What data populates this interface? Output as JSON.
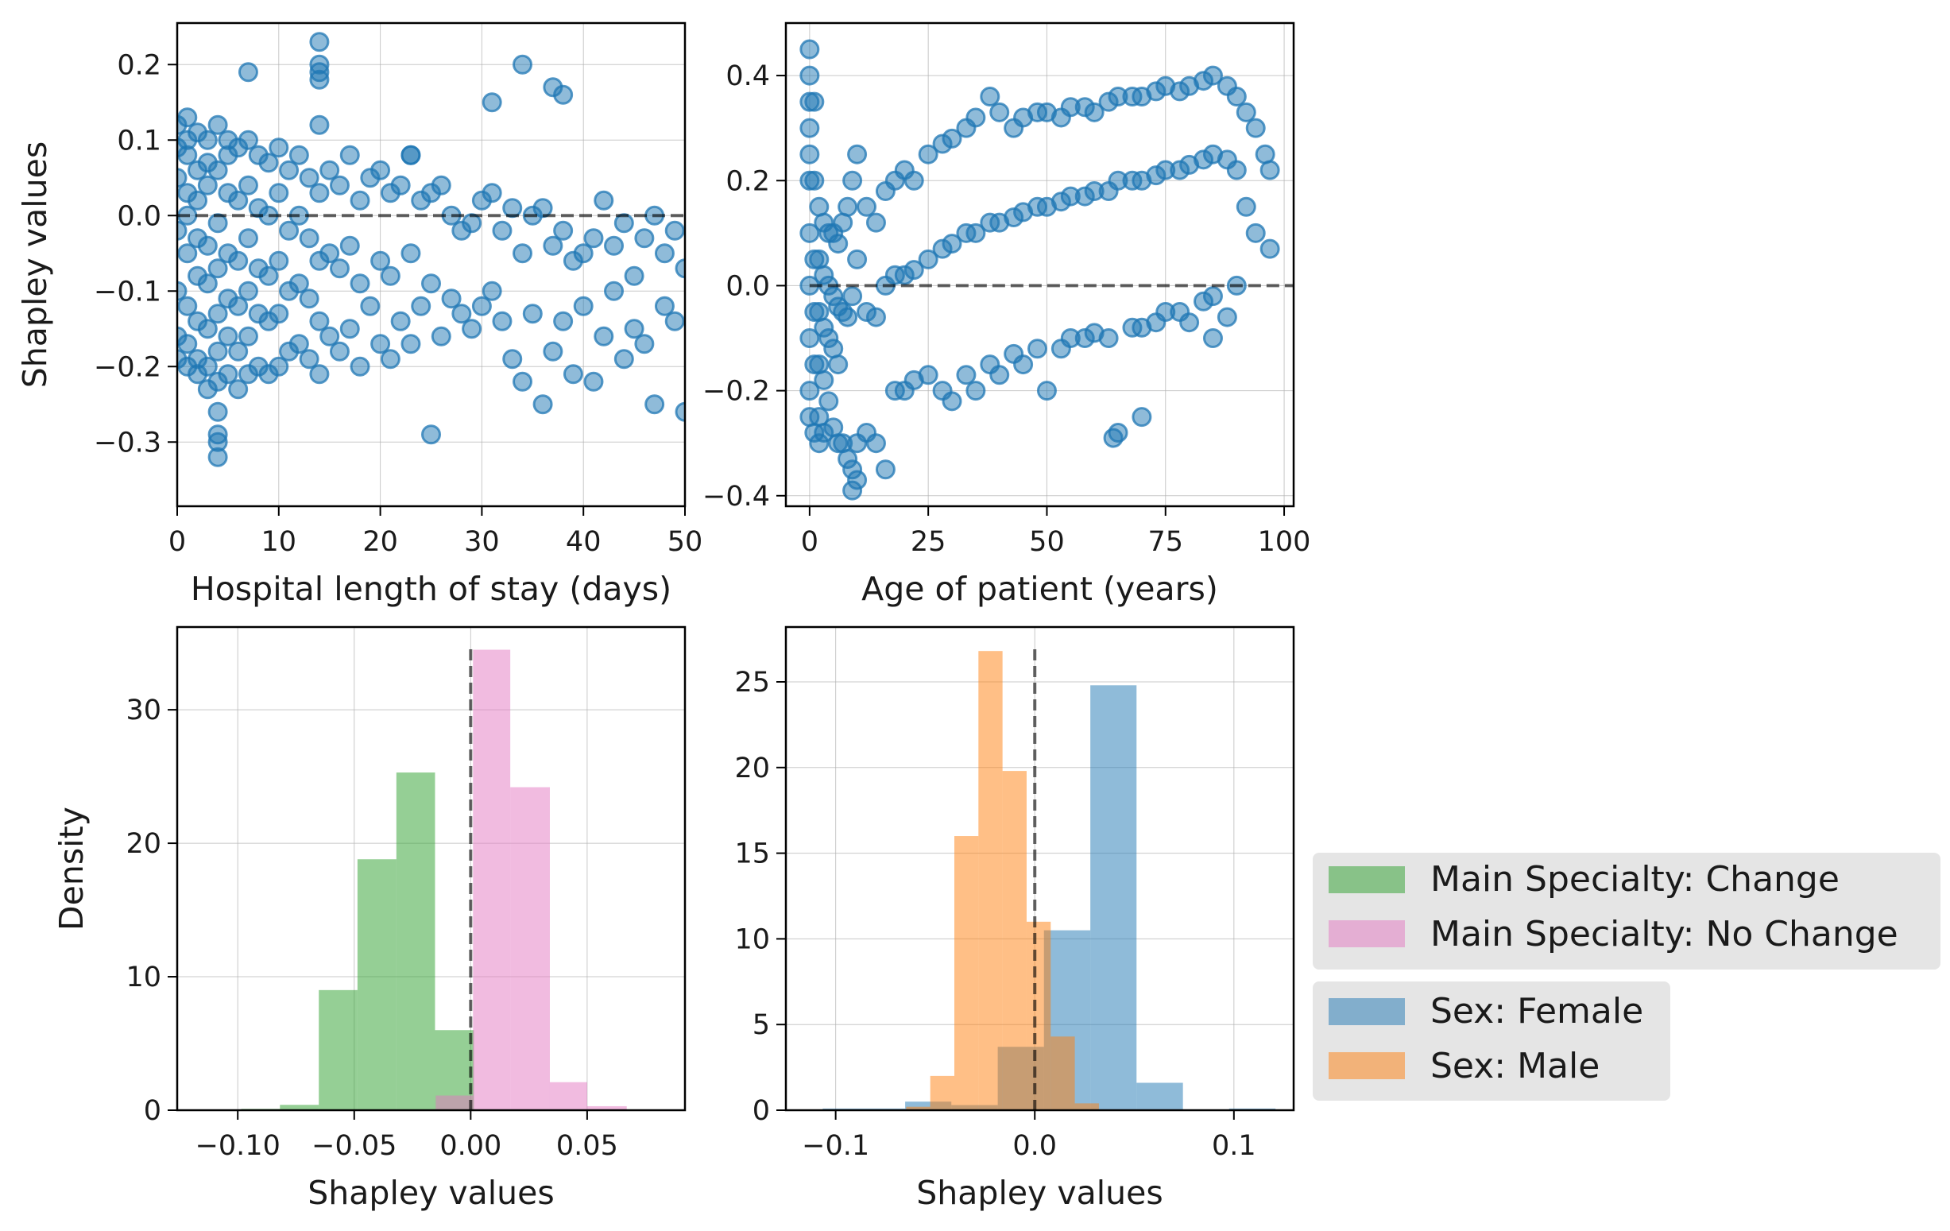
{
  "chart_data": [
    {
      "type": "scatter",
      "title": "",
      "xlabel": "Hospital length of stay (days)",
      "ylabel": "Shapley values",
      "xlim": [
        0,
        50
      ],
      "ylim": [
        -0.385,
        0.255
      ],
      "xticks": [
        0,
        10,
        20,
        30,
        40,
        50
      ],
      "yticks": [
        -0.3,
        -0.2,
        -0.1,
        0.0,
        0.1,
        0.2
      ],
      "xtick_labels": [
        "0",
        "10",
        "20",
        "30",
        "40",
        "50"
      ],
      "ytick_labels": [
        "−0.3",
        "−0.2",
        "−0.1",
        "0.0",
        "0.1",
        "0.2"
      ],
      "grid": true,
      "reference_line_y": 0.0,
      "color": "#1f77b4",
      "series": [
        {
          "x": [
            0,
            0,
            0,
            0,
            0,
            0,
            0,
            1,
            1,
            1,
            1,
            1,
            1,
            1,
            1,
            1,
            2,
            2,
            2,
            2,
            2,
            2,
            2,
            2,
            3,
            3,
            3,
            3,
            3,
            3,
            3,
            3,
            4,
            4,
            4,
            4,
            4,
            4,
            4,
            4,
            5,
            5,
            5,
            5,
            5,
            5,
            5,
            6,
            6,
            6,
            6,
            6,
            6,
            7,
            7,
            7,
            7,
            7,
            7,
            8,
            8,
            8,
            8,
            8,
            9,
            9,
            9,
            9,
            9,
            10,
            10,
            10,
            10,
            10,
            11,
            11,
            11,
            11,
            12,
            12,
            12,
            12,
            13,
            13,
            13,
            13,
            14,
            14,
            14,
            14,
            14,
            14,
            14,
            14,
            15,
            15,
            15,
            16,
            16,
            16,
            17,
            17,
            17,
            18,
            18,
            18,
            19,
            19,
            20,
            20,
            20,
            21,
            21,
            21,
            22,
            22,
            23,
            23,
            23,
            24,
            24,
            25,
            25,
            25,
            26,
            26,
            27,
            27,
            28,
            28,
            29,
            29,
            30,
            30,
            31,
            31,
            32,
            32,
            33,
            33,
            34,
            34,
            35,
            35,
            36,
            36,
            37,
            37,
            38,
            38,
            39,
            39,
            40,
            40,
            41,
            41,
            42,
            42,
            43,
            43,
            44,
            44,
            45,
            45,
            46,
            46,
            47,
            47,
            48,
            48,
            49,
            49,
            50,
            50,
            4,
            4,
            4,
            7,
            14,
            23,
            31,
            34,
            37,
            38
          ],
          "y": [
            0.12,
            0.05,
            -0.02,
            -0.1,
            -0.16,
            -0.19,
            0.09,
            0.13,
            0.08,
            0.0,
            -0.05,
            -0.12,
            -0.17,
            -0.2,
            0.1,
            0.03,
            0.11,
            0.06,
            -0.03,
            -0.08,
            -0.14,
            -0.19,
            0.02,
            -0.21,
            0.1,
            0.04,
            -0.04,
            -0.09,
            -0.15,
            -0.2,
            -0.23,
            0.07,
            0.12,
            0.06,
            -0.01,
            -0.07,
            -0.13,
            -0.18,
            -0.22,
            -0.26,
            0.1,
            0.03,
            -0.05,
            -0.11,
            -0.16,
            -0.21,
            0.08,
            0.09,
            0.02,
            -0.06,
            -0.12,
            -0.18,
            -0.23,
            0.1,
            0.04,
            -0.03,
            -0.1,
            -0.16,
            -0.21,
            0.08,
            0.01,
            -0.07,
            -0.13,
            -0.2,
            0.07,
            0.0,
            -0.08,
            -0.14,
            -0.21,
            0.09,
            0.03,
            -0.06,
            -0.13,
            -0.2,
            0.06,
            -0.02,
            -0.1,
            -0.18,
            0.08,
            0.0,
            -0.09,
            -0.17,
            0.05,
            -0.03,
            -0.11,
            -0.19,
            0.2,
            0.19,
            0.18,
            0.12,
            0.03,
            -0.06,
            -0.14,
            -0.21,
            0.06,
            -0.05,
            -0.16,
            0.04,
            -0.07,
            -0.18,
            0.08,
            -0.04,
            -0.15,
            0.02,
            -0.09,
            -0.2,
            0.05,
            -0.12,
            0.06,
            -0.06,
            -0.17,
            0.03,
            -0.08,
            -0.19,
            0.04,
            -0.14,
            0.08,
            -0.05,
            -0.17,
            0.02,
            -0.12,
            -0.29,
            0.03,
            -0.09,
            0.04,
            -0.16,
            0.0,
            -0.11,
            -0.02,
            -0.13,
            -0.01,
            -0.15,
            0.02,
            -0.12,
            0.03,
            -0.1,
            -0.02,
            -0.14,
            0.01,
            -0.19,
            -0.05,
            -0.22,
            0.0,
            -0.13,
            0.01,
            -0.25,
            -0.04,
            -0.18,
            -0.02,
            -0.14,
            -0.06,
            -0.21,
            -0.05,
            -0.12,
            -0.03,
            -0.22,
            0.02,
            -0.16,
            -0.04,
            -0.1,
            -0.01,
            -0.19,
            -0.08,
            -0.15,
            -0.03,
            -0.17,
            0.0,
            -0.25,
            -0.05,
            -0.12,
            -0.02,
            -0.14,
            -0.07,
            -0.26,
            -0.29,
            -0.3,
            -0.32,
            0.19,
            0.23,
            0.08,
            0.15,
            0.2,
            0.17,
            0.16
          ]
        }
      ]
    },
    {
      "type": "scatter",
      "title": "",
      "xlabel": "Age of patient (years)",
      "ylabel": "",
      "xlim": [
        -5,
        102
      ],
      "ylim": [
        -0.42,
        0.5
      ],
      "xticks": [
        0,
        25,
        50,
        75,
        100
      ],
      "yticks": [
        -0.4,
        -0.2,
        0.0,
        0.2,
        0.4
      ],
      "xtick_labels": [
        "0",
        "25",
        "50",
        "75",
        "100"
      ],
      "ytick_labels": [
        "−0.4",
        "−0.2",
        "0.0",
        "0.2",
        "0.4"
      ],
      "grid": true,
      "reference_line_y": 0.0,
      "color": "#1f77b4",
      "series": [
        {
          "x": [
            0,
            0,
            0,
            0,
            0,
            0,
            0,
            0,
            0,
            0,
            0,
            1,
            1,
            1,
            1,
            1,
            1,
            2,
            2,
            2,
            2,
            2,
            2,
            3,
            3,
            3,
            3,
            3,
            4,
            4,
            4,
            4,
            5,
            5,
            5,
            5,
            6,
            6,
            6,
            6,
            7,
            7,
            7,
            8,
            8,
            8,
            9,
            9,
            9,
            10,
            10,
            10,
            12,
            12,
            12,
            14,
            14,
            14,
            16,
            16,
            16,
            18,
            18,
            18,
            20,
            20,
            20,
            22,
            22,
            22,
            25,
            25,
            25,
            28,
            28,
            28,
            30,
            30,
            30,
            33,
            33,
            33,
            35,
            35,
            35,
            38,
            38,
            38,
            40,
            40,
            40,
            43,
            43,
            43,
            45,
            45,
            45,
            48,
            48,
            48,
            50,
            50,
            50,
            53,
            53,
            53,
            55,
            55,
            55,
            58,
            58,
            58,
            60,
            60,
            60,
            63,
            63,
            63,
            65,
            65,
            65,
            68,
            68,
            68,
            70,
            70,
            70,
            73,
            73,
            73,
            75,
            75,
            75,
            78,
            78,
            78,
            80,
            80,
            80,
            83,
            83,
            83,
            85,
            85,
            85,
            88,
            88,
            88,
            90,
            90,
            90,
            92,
            92,
            94,
            94,
            96,
            97,
            97,
            9,
            10,
            64,
            70,
            85
          ],
          "y": [
            0.45,
            0.4,
            0.35,
            0.3,
            0.25,
            0.2,
            0.1,
            0.0,
            -0.1,
            -0.2,
            -0.25,
            0.35,
            0.2,
            0.05,
            -0.05,
            -0.15,
            -0.28,
            0.15,
            0.05,
            -0.05,
            -0.15,
            -0.25,
            -0.3,
            0.12,
            0.02,
            -0.08,
            -0.18,
            -0.28,
            0.1,
            0.0,
            -0.1,
            -0.22,
            0.1,
            -0.02,
            -0.12,
            -0.27,
            0.08,
            -0.04,
            -0.15,
            -0.3,
            0.12,
            -0.05,
            -0.3,
            0.15,
            -0.06,
            -0.33,
            0.2,
            -0.02,
            -0.35,
            0.25,
            0.05,
            -0.3,
            0.15,
            -0.05,
            -0.28,
            0.12,
            -0.06,
            -0.3,
            0.18,
            0.0,
            -0.35,
            0.2,
            0.02,
            -0.2,
            0.22,
            0.02,
            -0.2,
            0.2,
            0.03,
            -0.18,
            0.25,
            0.05,
            -0.17,
            0.27,
            0.07,
            -0.2,
            0.28,
            0.08,
            -0.22,
            0.3,
            0.1,
            -0.17,
            0.32,
            0.1,
            -0.2,
            0.36,
            0.12,
            -0.15,
            0.33,
            0.12,
            -0.17,
            0.3,
            0.13,
            -0.13,
            0.32,
            0.14,
            -0.15,
            0.33,
            0.15,
            -0.12,
            0.33,
            0.15,
            -0.2,
            0.32,
            0.16,
            -0.12,
            0.34,
            0.17,
            -0.1,
            0.34,
            0.17,
            -0.1,
            0.33,
            0.18,
            -0.09,
            0.35,
            0.18,
            -0.1,
            0.36,
            0.2,
            -0.28,
            0.36,
            0.2,
            -0.08,
            0.36,
            0.2,
            -0.08,
            0.37,
            0.21,
            -0.07,
            0.38,
            0.22,
            -0.05,
            0.37,
            0.22,
            -0.05,
            0.38,
            0.23,
            -0.07,
            0.39,
            0.24,
            -0.03,
            0.4,
            0.25,
            -0.02,
            0.38,
            0.24,
            -0.06,
            0.36,
            0.22,
            0.0,
            0.33,
            0.15,
            0.3,
            0.1,
            0.25,
            0.22,
            0.07,
            -0.39,
            -0.37,
            -0.29,
            -0.25,
            -0.1
          ]
        }
      ]
    },
    {
      "type": "histogram",
      "title": "",
      "xlabel": "Shapley values",
      "ylabel": "Density",
      "xlim": [
        -0.126,
        0.092
      ],
      "ylim": [
        0,
        36.2
      ],
      "xticks": [
        -0.1,
        -0.05,
        0.0,
        0.05
      ],
      "yticks": [
        0,
        10,
        20,
        30
      ],
      "xtick_labels": [
        "−0.10",
        "−0.05",
        "0.00",
        "0.05"
      ],
      "ytick_labels": [
        "0",
        "10",
        "20",
        "30"
      ],
      "grid": true,
      "reference_line_x": 0.0,
      "series": [
        {
          "name": "Main Specialty: Change",
          "color": "#2ca02c",
          "bin_edges": [
            -0.0985,
            -0.0819,
            -0.0652,
            -0.0486,
            -0.0319,
            -0.0153,
            0.0014
          ],
          "values": [
            0.1,
            0.4,
            9.0,
            18.8,
            25.3,
            6.0
          ]
        },
        {
          "name": "Main Specialty: No Change",
          "color": "#e377c2",
          "bin_edges": [
            -0.015,
            0.001,
            0.017,
            0.034,
            0.05,
            0.067
          ],
          "values": [
            1.1,
            34.5,
            24.2,
            2.1,
            0.3
          ]
        }
      ]
    },
    {
      "type": "histogram",
      "title": "",
      "xlabel": "Shapley values",
      "ylabel": "",
      "xlim": [
        -0.125,
        0.13
      ],
      "ylim": [
        0,
        28.2
      ],
      "xticks": [
        -0.1,
        0.0,
        0.1
      ],
      "yticks": [
        0,
        5,
        10,
        15,
        20,
        25
      ],
      "xtick_labels": [
        "−0.1",
        "0.0",
        "0.1"
      ],
      "ytick_labels": [
        "0",
        "5",
        "10",
        "15",
        "20",
        "25"
      ],
      "grid": true,
      "reference_line_x": 0.0,
      "series": [
        {
          "name": "Sex: Female",
          "color": "#1f77b4",
          "bin_edges": [
            -0.1065,
            -0.0833,
            -0.0651,
            -0.0419,
            -0.0186,
            0.0046,
            0.0279,
            0.0511,
            0.0744,
            0.0976,
            0.1209
          ],
          "values": [
            0.1,
            0.1,
            0.5,
            0.3,
            3.7,
            10.5,
            24.8,
            1.6,
            0.0,
            0.1
          ]
        },
        {
          "name": "Sex: Male",
          "color": "#ff7f0e",
          "bin_edges": [
            -0.0646,
            -0.0525,
            -0.0404,
            -0.0283,
            -0.0162,
            -0.0041,
            0.008,
            0.0201,
            0.0322
          ],
          "values": [
            0.2,
            2.0,
            16.0,
            26.8,
            19.8,
            11.0,
            4.3,
            0.4
          ]
        }
      ]
    }
  ],
  "legends": {
    "specialty": {
      "items": [
        {
          "label": "Main Specialty: Change",
          "color": "#2ca02c"
        },
        {
          "label": "Main Specialty: No Change",
          "color": "#e377c2"
        }
      ]
    },
    "sex": {
      "items": [
        {
          "label": "Sex: Female",
          "color": "#1f77b4"
        },
        {
          "label": "Sex: Male",
          "color": "#ff7f0e"
        }
      ]
    }
  }
}
